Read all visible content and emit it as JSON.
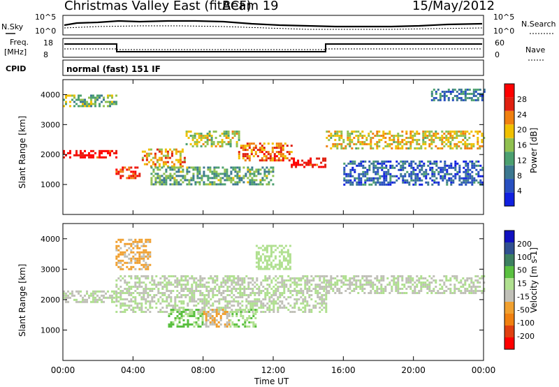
{
  "header": {
    "title": "Christmas Valley East (fitACF)",
    "beam": "Beam 19",
    "date": "15/May/2012"
  },
  "status_panels": {
    "nsky_label": "N.Sky",
    "nsearch_label": "N.Search",
    "noise_ticks": [
      "10^5",
      "10^0"
    ],
    "freq_label": [
      "Freq.",
      "[MHz]"
    ],
    "freq_ticks": [
      "18",
      "8"
    ],
    "nave_label": "Nave",
    "nave_ticks": [
      "60",
      "0"
    ],
    "cpid_label": "CPID",
    "cpid_value": "normal (fast) 151 IF"
  },
  "colors": {
    "power_scale": [
      "#1020e0",
      "#2850c0",
      "#3c7890",
      "#4ca070",
      "#90c050",
      "#f0c000",
      "#f08010",
      "#e02010",
      "#ff0000"
    ],
    "velocity_scale": [
      "#1010c0",
      "#305090",
      "#3d8060",
      "#5ac040",
      "#b0e090",
      "#c0c0b8",
      "#f0a030",
      "#f08010",
      "#e04010",
      "#ff0000"
    ]
  },
  "chart_data": [
    {
      "type": "heatmap",
      "name": "power",
      "xlabel": "Time UT",
      "ylabel": "Slant Range [km]",
      "x_ticks": [
        "00:00",
        "04:00",
        "08:00",
        "12:00",
        "16:00",
        "20:00",
        "00:00"
      ],
      "y_ticks": [
        "1000",
        "2000",
        "3000",
        "4000"
      ],
      "ylim": [
        0,
        4500
      ],
      "colorbar_label": "Power [dB]",
      "colorbar_ticks": [
        "4",
        "8",
        "12",
        "16",
        "20",
        "24",
        "28"
      ],
      "colorbar_range": [
        0,
        30
      ],
      "bands": [
        {
          "t": [
            0,
            3
          ],
          "r": [
            1900,
            2150
          ],
          "v": 28
        },
        {
          "t": [
            3,
            4.5
          ],
          "r": [
            1200,
            1600
          ],
          "v": 26
        },
        {
          "t": [
            4.5,
            7
          ],
          "r": [
            1600,
            2200
          ],
          "v": 20
        },
        {
          "t": [
            7,
            10
          ],
          "r": [
            2300,
            2800
          ],
          "v": 16
        },
        {
          "t": [
            10,
            13
          ],
          "r": [
            1800,
            2400
          ],
          "v": 22
        },
        {
          "t": [
            13,
            15
          ],
          "r": [
            1600,
            1900
          ],
          "v": 28
        },
        {
          "t": [
            15,
            24
          ],
          "r": [
            2200,
            2800
          ],
          "v": 18
        },
        {
          "t": [
            0,
            3
          ],
          "r": [
            3600,
            4000
          ],
          "v": 14
        },
        {
          "t": [
            5,
            12
          ],
          "r": [
            1000,
            1600
          ],
          "v": 12
        },
        {
          "t": [
            21,
            24
          ],
          "r": [
            3800,
            4200
          ],
          "v": 8
        },
        {
          "t": [
            16,
            24
          ],
          "r": [
            1000,
            1800
          ],
          "v": 6
        }
      ]
    },
    {
      "type": "heatmap",
      "name": "velocity",
      "xlabel": "Time UT",
      "ylabel": "Slant Range [km]",
      "x_ticks": [
        "00:00",
        "04:00",
        "08:00",
        "12:00",
        "16:00",
        "20:00",
        "00:00"
      ],
      "y_ticks": [
        "1000",
        "2000",
        "3000",
        "4000"
      ],
      "ylim": [
        0,
        4500
      ],
      "colorbar_label": "Velocity [m s-1]",
      "colorbar_ticks": [
        "200",
        "100",
        "50",
        "15",
        "-15",
        "-50",
        "-100",
        "-200"
      ],
      "colorbar_range": [
        -250,
        250
      ],
      "bands": [
        {
          "t": [
            0,
            3
          ],
          "r": [
            1900,
            2300
          ],
          "v": 0
        },
        {
          "t": [
            3,
            15
          ],
          "r": [
            1600,
            2800
          ],
          "v": 0
        },
        {
          "t": [
            15,
            24
          ],
          "r": [
            2200,
            2800
          ],
          "v": 0
        },
        {
          "t": [
            6,
            8
          ],
          "r": [
            1100,
            1700
          ],
          "v": 60
        },
        {
          "t": [
            8,
            9.5
          ],
          "r": [
            1100,
            1700
          ],
          "v": -50
        },
        {
          "t": [
            9.5,
            11
          ],
          "r": [
            1100,
            1700
          ],
          "v": 40
        },
        {
          "t": [
            3,
            5
          ],
          "r": [
            3000,
            4000
          ],
          "v": -60
        },
        {
          "t": [
            11,
            13
          ],
          "r": [
            3000,
            3800
          ],
          "v": 30
        }
      ]
    }
  ]
}
